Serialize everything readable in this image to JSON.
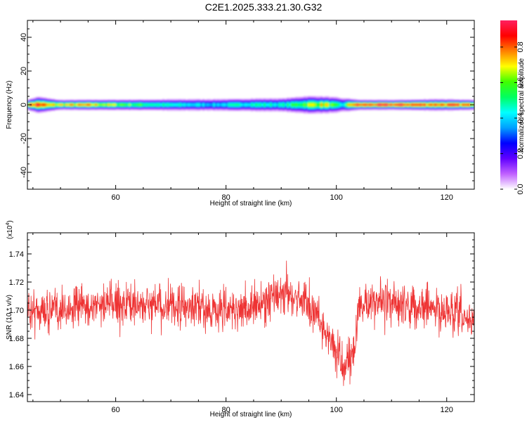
{
  "chart_data": [
    {
      "type": "heatmap",
      "title": "C2E1.2025.333.21.30.G32",
      "xlabel": "Height of straight line (km)",
      "ylabel": "Frequency (Hz)",
      "xlim": [
        44,
        125
      ],
      "ylim": [
        -50,
        50
      ],
      "xticks": [
        60,
        80,
        100,
        120
      ],
      "yticks": [
        -40,
        -20,
        0,
        20,
        40
      ],
      "colorbar": {
        "label": "Normalized spectral amplitude",
        "range": [
          0,
          0.95
        ],
        "ticks": [
          "0.0",
          "0.2",
          "0.4",
          "0.6",
          "0.8"
        ],
        "colors": [
          "#ffffff",
          "#c060ff",
          "#6000ff",
          "#0000ff",
          "#00a0ff",
          "#00ffff",
          "#00ff60",
          "#40ff00",
          "#ffff00",
          "#ff8000",
          "#ff0000",
          "#ff2060"
        ]
      },
      "band": {
        "center_frequency_hz": 0,
        "half_width_hz": [
          [
            44,
            2.5
          ],
          [
            46,
            4
          ],
          [
            50,
            2.5
          ],
          [
            60,
            2.7
          ],
          [
            70,
            3
          ],
          [
            80,
            3.2
          ],
          [
            90,
            3.5
          ],
          [
            95,
            4.5
          ],
          [
            100,
            4
          ],
          [
            104,
            2.5
          ],
          [
            110,
            2.4
          ],
          [
            118,
            2.8
          ],
          [
            125,
            2.5
          ]
        ],
        "peak_amplitude": [
          [
            44,
            0.8
          ],
          [
            46,
            0.9
          ],
          [
            48,
            0.7
          ],
          [
            55,
            0.75
          ],
          [
            62,
            0.6
          ],
          [
            70,
            0.45
          ],
          [
            78,
            0.4
          ],
          [
            85,
            0.5
          ],
          [
            90,
            0.45
          ],
          [
            95,
            0.65
          ],
          [
            98,
            0.7
          ],
          [
            101,
            0.4
          ],
          [
            103,
            0.85
          ],
          [
            110,
            0.9
          ],
          [
            120,
            0.85
          ],
          [
            125,
            0.8
          ]
        ]
      }
    },
    {
      "type": "line",
      "xlabel": "Height of straight line (km)",
      "ylabel": "SNR (10 * v/v)",
      "y_multiplier": "(x10",
      "y_multiplier_exp": "4",
      "y_multiplier_close": ")",
      "xlim": [
        44,
        125
      ],
      "ylim": [
        1.635,
        1.755
      ],
      "xticks": [
        60,
        80,
        100,
        120
      ],
      "yticks": [
        "1.64",
        "1.66",
        "1.68",
        "1.70",
        "1.72",
        "1.74"
      ],
      "series": [
        {
          "color": "#ee3333",
          "trend_x": [
            44,
            50,
            60,
            70,
            80,
            85,
            90,
            94,
            96,
            98,
            100,
            101,
            102,
            103,
            104,
            105,
            110,
            115,
            120,
            125
          ],
          "trend_y": [
            1.7,
            1.7,
            1.705,
            1.702,
            1.7,
            1.702,
            1.712,
            1.708,
            1.7,
            1.685,
            1.67,
            1.662,
            1.66,
            1.672,
            1.698,
            1.705,
            1.705,
            1.703,
            1.698,
            1.692
          ],
          "noise_amplitude": 0.014
        }
      ]
    }
  ]
}
